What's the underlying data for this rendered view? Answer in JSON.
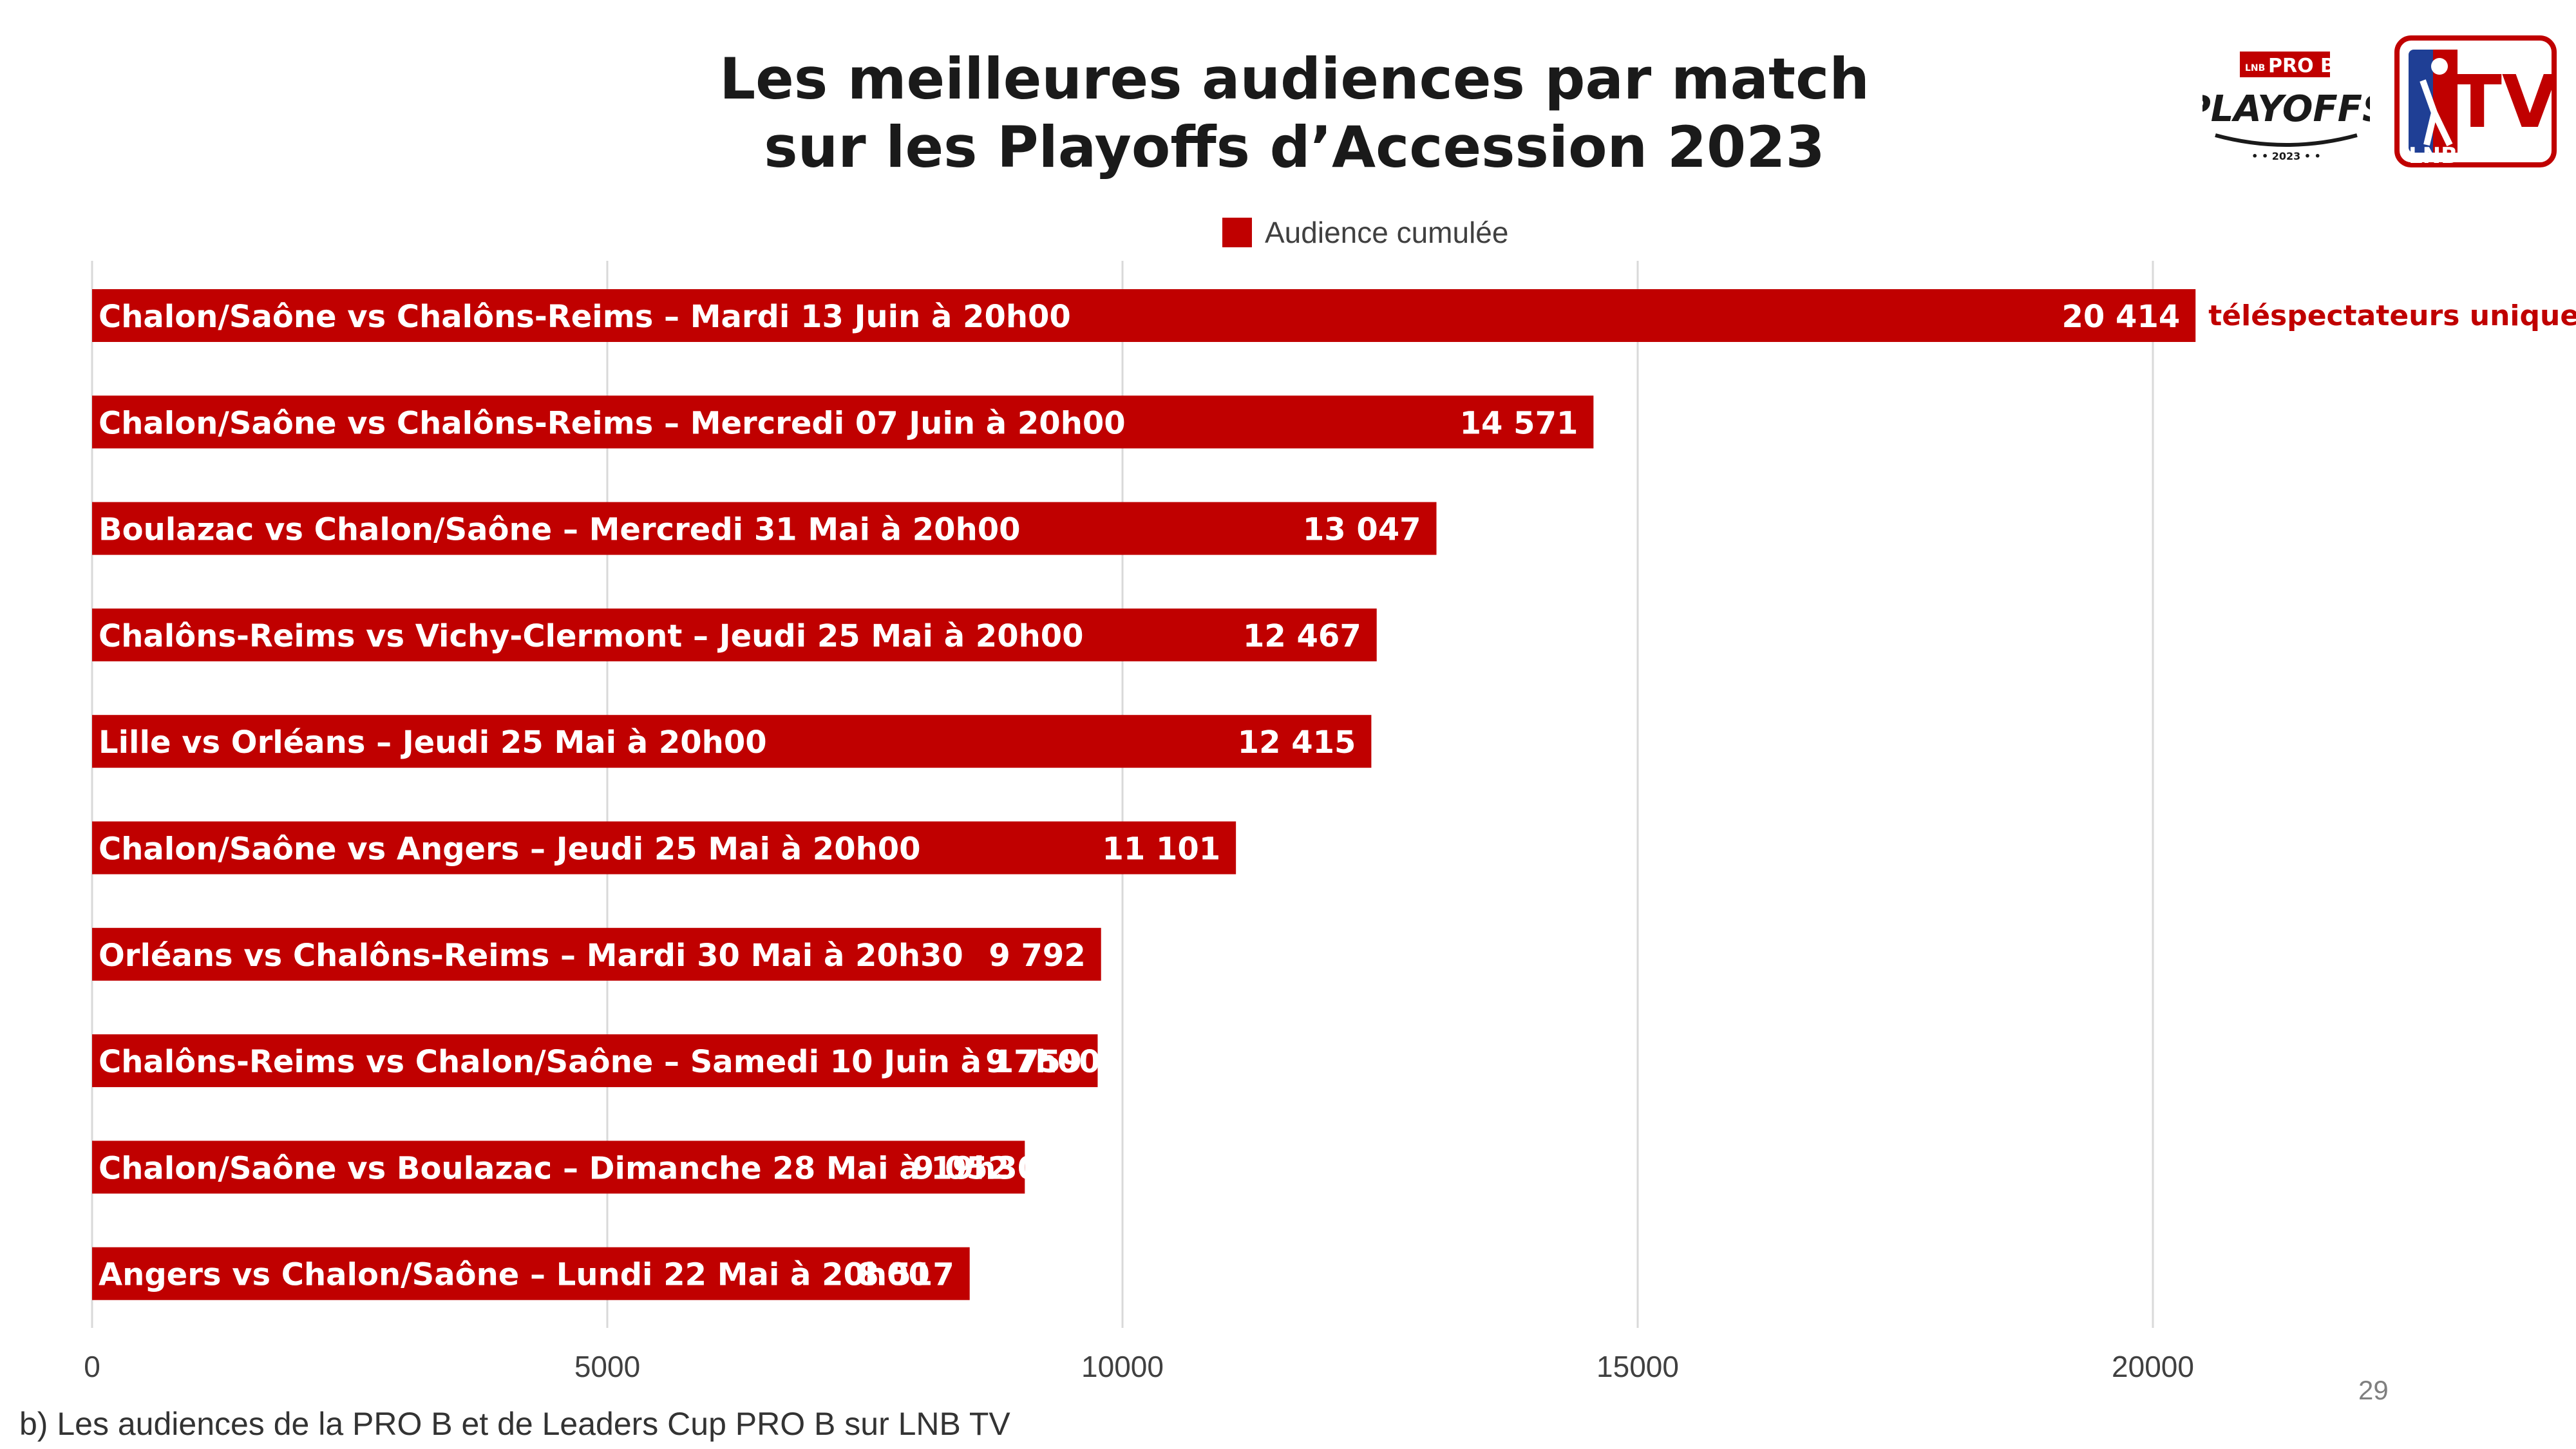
{
  "title": {
    "line1": "Les meilleures audiences par match",
    "line2": "sur les Playoffs d’Accession 2023"
  },
  "legend": {
    "label": "Audience cumulée",
    "color": "#C00000"
  },
  "annotation": "téléspectateurs uniques",
  "footnote": "b) Les audiences de la PRO B et de Leaders Cup PRO B sur LNB TV",
  "page_number": "29",
  "logos": {
    "playoffs": {
      "top": "LNB",
      "brand": "PRO B",
      "word": "PLAYOFFS",
      "year": "• • 2023 • •"
    },
    "lnbtv": {
      "lnb": "LNB",
      "tv": "TV"
    }
  },
  "colors": {
    "bar": "#C00000",
    "grid": "#D9D9D9",
    "annotation": "#C00000"
  },
  "chart_data": {
    "type": "bar",
    "orientation": "horizontal",
    "categories": [
      "Chalon/Saône vs Chalôns-Reims – Mardi 13 Juin à 20h00",
      "Chalon/Saône vs Chalôns-Reims – Mercredi 07 Juin à 20h00",
      "Boulazac vs Chalon/Saône – Mercredi 31 Mai à 20h00",
      "Chalôns-Reims vs Vichy-Clermont – Jeudi 25 Mai à 20h00",
      "Lille vs Orléans – Jeudi 25 Mai à 20h00",
      "Chalon/Saône vs Angers – Jeudi 25 Mai à 20h00",
      "Orléans vs Chalôns-Reims – Mardi 30 Mai à 20h30",
      "Chalôns-Reims vs Chalon/Saône – Samedi 10 Juin à 17h00",
      "Chalon/Saône vs Boulazac – Dimanche 28 Mai à 19h30",
      "Angers vs Chalon/Saône – Lundi 22 Mai à 20h00"
    ],
    "series": [
      {
        "name": "Audience cumulée",
        "values": [
          20414,
          14571,
          13047,
          12467,
          12415,
          11101,
          9792,
          9759,
          9052,
          8517
        ],
        "labels": [
          "20 414",
          "14 571",
          "13 047",
          "12 467",
          "12 415",
          "11 101",
          "9 792",
          "9 759",
          "9 052",
          "8 517"
        ]
      }
    ],
    "xlim": [
      0,
      25000
    ],
    "xticks": [
      0,
      5000,
      10000,
      15000,
      20000
    ],
    "xtick_labels": [
      "0",
      "5000",
      "10000",
      "15000",
      "20000"
    ],
    "grid": true,
    "legend_position": "top"
  }
}
